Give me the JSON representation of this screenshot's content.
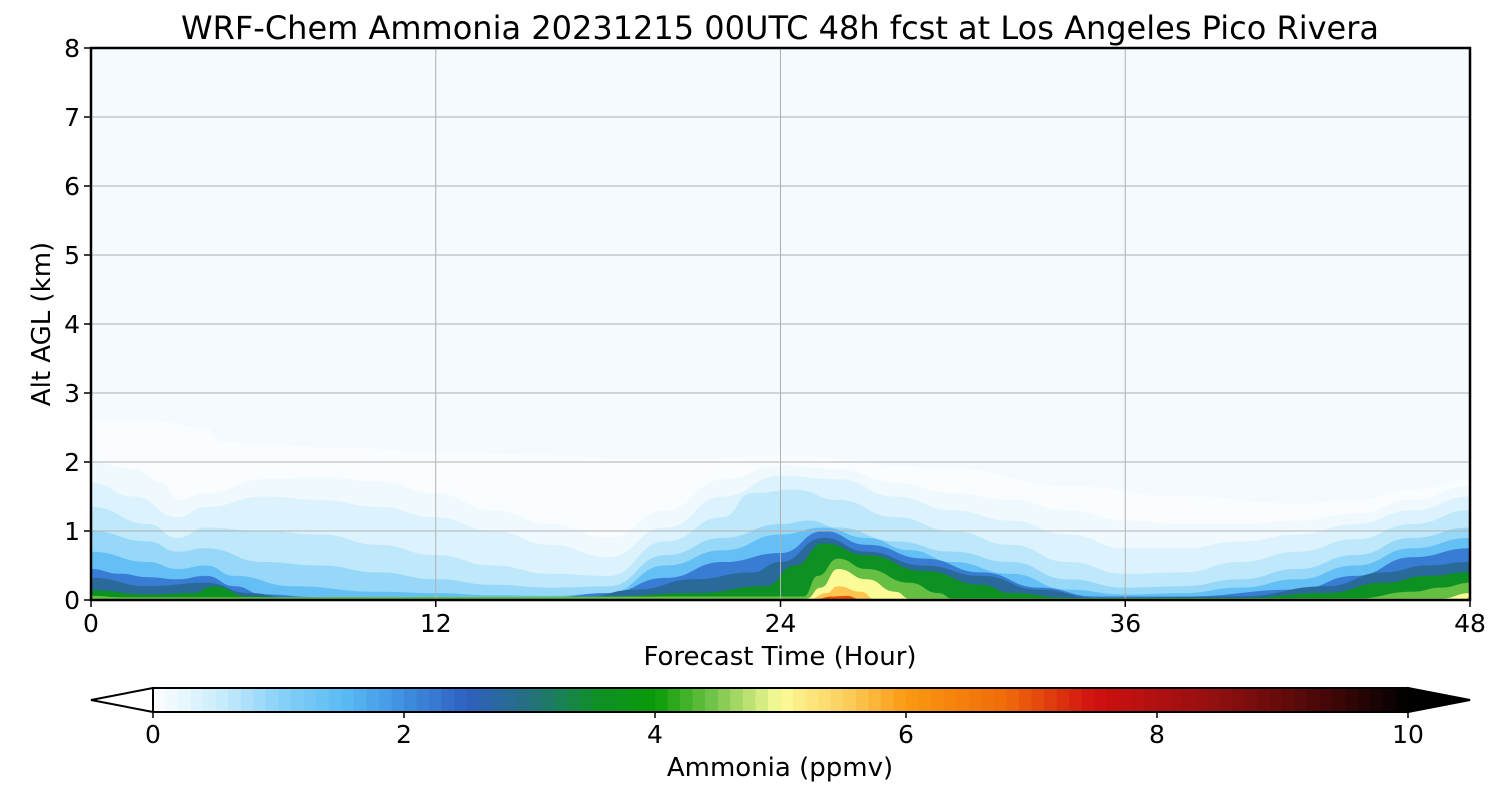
{
  "chart_data": {
    "type": "heatmap",
    "subtype": "filled-contour time-height cross section",
    "title": "WRF-Chem Ammonia  20231215 00UTC 48h fcst at Los Angeles Pico Rivera",
    "xlabel": "Forecast Time (Hour)",
    "ylabel": "Alt AGL (km)",
    "xlim": [
      0,
      48
    ],
    "ylim": [
      0,
      8
    ],
    "xticks": [
      0,
      12,
      24,
      36,
      48
    ],
    "xtick_labels": [
      "0",
      "12",
      "24",
      "36",
      "48"
    ],
    "yticks": [
      0,
      1,
      2,
      3,
      4,
      5,
      6,
      7,
      8
    ],
    "ytick_labels": [
      "0",
      "1",
      "2",
      "3",
      "4",
      "5",
      "6",
      "7",
      "8"
    ],
    "grid": true,
    "colorbar": {
      "label": "Ammonia  (ppmv)",
      "min": 0,
      "max": 10,
      "extend": "both",
      "orientation": "horizontal",
      "ticks": [
        0,
        2,
        4,
        6,
        8,
        10
      ],
      "tick_labels": [
        "0",
        "2",
        "4",
        "6",
        "8",
        "10"
      ],
      "color_stops": [
        {
          "value": 0.0,
          "color": "#ffffff"
        },
        {
          "value": 0.5,
          "color": "#cdeefc"
        },
        {
          "value": 1.0,
          "color": "#8ad2f8"
        },
        {
          "value": 1.5,
          "color": "#5bbcf3"
        },
        {
          "value": 2.0,
          "color": "#3f8fe0"
        },
        {
          "value": 2.5,
          "color": "#2f60c0"
        },
        {
          "value": 3.0,
          "color": "#257080"
        },
        {
          "value": 3.5,
          "color": "#0f8f2a"
        },
        {
          "value": 4.0,
          "color": "#089a08"
        },
        {
          "value": 4.5,
          "color": "#7cc850"
        },
        {
          "value": 5.0,
          "color": "#fbfb98"
        },
        {
          "value": 5.5,
          "color": "#fcd060"
        },
        {
          "value": 6.0,
          "color": "#fb9a12"
        },
        {
          "value": 6.8,
          "color": "#ef6a0a"
        },
        {
          "value": 7.5,
          "color": "#d01010"
        },
        {
          "value": 8.5,
          "color": "#901010"
        },
        {
          "value": 9.3,
          "color": "#4a0808"
        },
        {
          "value": 10.0,
          "color": "#000000"
        }
      ]
    },
    "field_layers": [
      {
        "level": 0.05,
        "points": [
          [
            0,
            2.6
          ],
          [
            2,
            2.6
          ],
          [
            4,
            2.5
          ],
          [
            4.5,
            2.3
          ],
          [
            6,
            2.25
          ],
          [
            9,
            2.2
          ],
          [
            12,
            2.15
          ],
          [
            16,
            2.1
          ],
          [
            18,
            2.05
          ],
          [
            20,
            2.05
          ],
          [
            22,
            2.05
          ],
          [
            24,
            2.1
          ],
          [
            26,
            2.05
          ],
          [
            28,
            1.95
          ],
          [
            30,
            1.9
          ],
          [
            34,
            1.65
          ],
          [
            38,
            1.5
          ],
          [
            42,
            1.4
          ],
          [
            44,
            1.45
          ],
          [
            46,
            1.6
          ],
          [
            48,
            1.75
          ]
        ]
      },
      {
        "level": 0.15,
        "points": [
          [
            0,
            2.0
          ],
          [
            1.5,
            1.9
          ],
          [
            2.5,
            1.7
          ],
          [
            3,
            1.45
          ],
          [
            4,
            1.55
          ],
          [
            6,
            1.75
          ],
          [
            8,
            1.78
          ],
          [
            10,
            1.72
          ],
          [
            12,
            1.55
          ],
          [
            14,
            1.3
          ],
          [
            16,
            1.1
          ],
          [
            18,
            0.9
          ],
          [
            20,
            1.3
          ],
          [
            22,
            1.75
          ],
          [
            24,
            1.95
          ],
          [
            26,
            1.9
          ],
          [
            28,
            1.7
          ],
          [
            30,
            1.55
          ],
          [
            32,
            1.45
          ],
          [
            34,
            1.3
          ],
          [
            36,
            1.15
          ],
          [
            38,
            1.1
          ],
          [
            40,
            1.1
          ],
          [
            42,
            1.15
          ],
          [
            44,
            1.25
          ],
          [
            46,
            1.45
          ],
          [
            48,
            1.65
          ]
        ]
      },
      {
        "level": 0.35,
        "points": [
          [
            0,
            1.7
          ],
          [
            1.5,
            1.5
          ],
          [
            3,
            1.2
          ],
          [
            4,
            1.35
          ],
          [
            6,
            1.5
          ],
          [
            8,
            1.45
          ],
          [
            10,
            1.35
          ],
          [
            12,
            1.2
          ],
          [
            14,
            1.0
          ],
          [
            16,
            0.8
          ],
          [
            18,
            0.62
          ],
          [
            20,
            1.05
          ],
          [
            22,
            1.5
          ],
          [
            24,
            1.8
          ],
          [
            26,
            1.75
          ],
          [
            28,
            1.5
          ],
          [
            30,
            1.3
          ],
          [
            32,
            1.15
          ],
          [
            34,
            0.95
          ],
          [
            36,
            0.75
          ],
          [
            38,
            0.75
          ],
          [
            40,
            0.85
          ],
          [
            42,
            0.95
          ],
          [
            44,
            1.1
          ],
          [
            46,
            1.3
          ],
          [
            48,
            1.5
          ]
        ]
      },
      {
        "level": 0.6,
        "points": [
          [
            0,
            1.35
          ],
          [
            2,
            1.1
          ],
          [
            3,
            0.9
          ],
          [
            4,
            1.05
          ],
          [
            6,
            1.0
          ],
          [
            8,
            0.95
          ],
          [
            10,
            0.8
          ],
          [
            12,
            0.65
          ],
          [
            14,
            0.5
          ],
          [
            16,
            0.38
          ],
          [
            18,
            0.35
          ],
          [
            20,
            0.85
          ],
          [
            22,
            1.2
          ],
          [
            23,
            1.55
          ],
          [
            24.5,
            1.6
          ],
          [
            26,
            1.45
          ],
          [
            28,
            1.2
          ],
          [
            30,
            1.0
          ],
          [
            32,
            0.8
          ],
          [
            34,
            0.55
          ],
          [
            36,
            0.38
          ],
          [
            38,
            0.4
          ],
          [
            40,
            0.55
          ],
          [
            42,
            0.7
          ],
          [
            44,
            0.88
          ],
          [
            46,
            1.1
          ],
          [
            48,
            1.3
          ]
        ]
      },
      {
        "level": 0.9,
        "points": [
          [
            0,
            1.0
          ],
          [
            2,
            0.85
          ],
          [
            3,
            0.7
          ],
          [
            4,
            0.75
          ],
          [
            6,
            0.55
          ],
          [
            8,
            0.5
          ],
          [
            10,
            0.4
          ],
          [
            12,
            0.3
          ],
          [
            14,
            0.22
          ],
          [
            16,
            0.18
          ],
          [
            18,
            0.2
          ],
          [
            20,
            0.65
          ],
          [
            22,
            0.9
          ],
          [
            24,
            1.1
          ],
          [
            25,
            1.15
          ],
          [
            26,
            1.05
          ],
          [
            28,
            0.85
          ],
          [
            30,
            0.7
          ],
          [
            32,
            0.55
          ],
          [
            34,
            0.3
          ],
          [
            36,
            0.18
          ],
          [
            38,
            0.2
          ],
          [
            40,
            0.3
          ],
          [
            42,
            0.45
          ],
          [
            44,
            0.65
          ],
          [
            46,
            0.9
          ],
          [
            48,
            1.05
          ]
        ]
      },
      {
        "level": 1.4,
        "points": [
          [
            0,
            0.7
          ],
          [
            2,
            0.55
          ],
          [
            3,
            0.45
          ],
          [
            4,
            0.5
          ],
          [
            5,
            0.35
          ],
          [
            7,
            0.2
          ],
          [
            10,
            0.12
          ],
          [
            12,
            0.1
          ],
          [
            14,
            0.07
          ],
          [
            16,
            0.06
          ],
          [
            18,
            0.1
          ],
          [
            20,
            0.5
          ],
          [
            22,
            0.72
          ],
          [
            24,
            0.95
          ],
          [
            25.5,
            1.05
          ],
          [
            27,
            0.9
          ],
          [
            28.5,
            0.72
          ],
          [
            30,
            0.55
          ],
          [
            32,
            0.38
          ],
          [
            34,
            0.15
          ],
          [
            36,
            0.08
          ],
          [
            38,
            0.1
          ],
          [
            40,
            0.18
          ],
          [
            42,
            0.3
          ],
          [
            44,
            0.5
          ],
          [
            46,
            0.75
          ],
          [
            48,
            0.9
          ]
        ]
      },
      {
        "level": 2.2,
        "points": [
          [
            0,
            0.45
          ],
          [
            1,
            0.38
          ],
          [
            2,
            0.33
          ],
          [
            3,
            0.3
          ],
          [
            4,
            0.35
          ],
          [
            5,
            0.2
          ],
          [
            6,
            0.08
          ],
          [
            8,
            0.04
          ],
          [
            12,
            0.03
          ],
          [
            16,
            0.04
          ],
          [
            18,
            0.1
          ],
          [
            20,
            0.32
          ],
          [
            22,
            0.55
          ],
          [
            24,
            0.68
          ],
          [
            25.5,
            1.0
          ],
          [
            27,
            0.8
          ],
          [
            29,
            0.6
          ],
          [
            31,
            0.4
          ],
          [
            33,
            0.18
          ],
          [
            35,
            0.05
          ],
          [
            38,
            0.05
          ],
          [
            42,
            0.15
          ],
          [
            44,
            0.35
          ],
          [
            46,
            0.62
          ],
          [
            48,
            0.75
          ]
        ]
      },
      {
        "level": 2.8,
        "points": [
          [
            0,
            0.32
          ],
          [
            2,
            0.2
          ],
          [
            4,
            0.25
          ],
          [
            5.5,
            0.1
          ],
          [
            7,
            0.03
          ],
          [
            17,
            0.03
          ],
          [
            19,
            0.15
          ],
          [
            21,
            0.3
          ],
          [
            23,
            0.4
          ],
          [
            24,
            0.55
          ],
          [
            25.5,
            0.9
          ],
          [
            27,
            0.7
          ],
          [
            29,
            0.5
          ],
          [
            31,
            0.35
          ],
          [
            33,
            0.15
          ],
          [
            35,
            0.03
          ],
          [
            40,
            0.05
          ],
          [
            43,
            0.2
          ],
          [
            45,
            0.4
          ],
          [
            46.5,
            0.5
          ],
          [
            48,
            0.55
          ]
        ]
      },
      {
        "level": 3.6,
        "points": [
          [
            0,
            0.14
          ],
          [
            2,
            0.08
          ],
          [
            3.5,
            0.1
          ],
          [
            4.3,
            0.2
          ],
          [
            5.5,
            0.05
          ],
          [
            7,
            0.02
          ],
          [
            16,
            0.02
          ],
          [
            18,
            0.05
          ],
          [
            21,
            0.1
          ],
          [
            23.5,
            0.2
          ],
          [
            24.5,
            0.5
          ],
          [
            25.5,
            0.82
          ],
          [
            27,
            0.65
          ],
          [
            29,
            0.42
          ],
          [
            31,
            0.22
          ],
          [
            32,
            0.1
          ],
          [
            34,
            0.03
          ],
          [
            40,
            0.03
          ],
          [
            43,
            0.1
          ],
          [
            45,
            0.25
          ],
          [
            46.5,
            0.35
          ],
          [
            48,
            0.4
          ]
        ]
      },
      {
        "level": 4.4,
        "points": [
          [
            0,
            0.06
          ],
          [
            1,
            0.04
          ],
          [
            4,
            0.04
          ],
          [
            24.8,
            0.05
          ],
          [
            25.3,
            0.35
          ],
          [
            26,
            0.6
          ],
          [
            27,
            0.45
          ],
          [
            28.5,
            0.25
          ],
          [
            29.5,
            0.1
          ],
          [
            30,
            0.02
          ],
          [
            44,
            0.02
          ],
          [
            46,
            0.12
          ],
          [
            47,
            0.18
          ],
          [
            48,
            0.25
          ]
        ]
      },
      {
        "level": 5.0,
        "points": [
          [
            24.9,
            0.02
          ],
          [
            25.4,
            0.18
          ],
          [
            26,
            0.45
          ],
          [
            27,
            0.3
          ],
          [
            28,
            0.12
          ],
          [
            28.5,
            0.02
          ],
          [
            47,
            0.02
          ],
          [
            48,
            0.1
          ]
        ]
      },
      {
        "level": 5.6,
        "points": [
          [
            25,
            0.01
          ],
          [
            25.6,
            0.1
          ],
          [
            26,
            0.2
          ],
          [
            26.8,
            0.12
          ],
          [
            27.3,
            0.01
          ],
          [
            47.8,
            0.01
          ],
          [
            48,
            0.05
          ]
        ]
      },
      {
        "level": 7.0,
        "points": [
          [
            25.2,
            0.01
          ],
          [
            25.8,
            0.05
          ],
          [
            26.3,
            0.06
          ],
          [
            26.8,
            0.01
          ]
        ]
      }
    ]
  }
}
